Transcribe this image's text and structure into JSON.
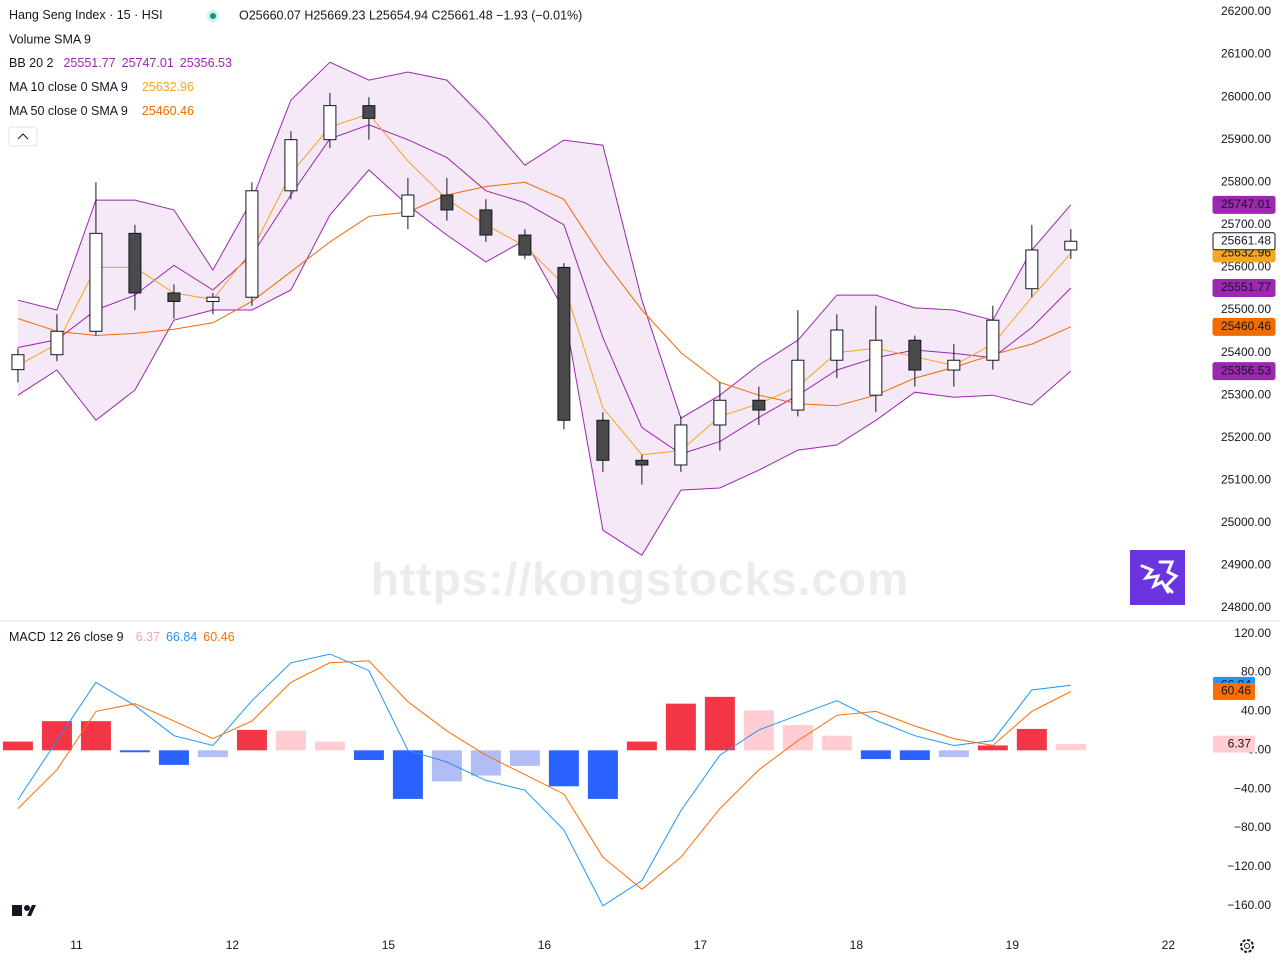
{
  "chart_data": [
    {
      "type": "candlestick",
      "title": "Hang Seng Index · 15 · HSI",
      "ohlc_text": "O25660.07 H25669.23 L25654.94 C25661.48 −1.93 (−0.01%)",
      "volume_text": "Volume SMA 9",
      "watermark": "https://kongstocks.com",
      "x": [
        -0.375,
        -0.125,
        0.125,
        0.375,
        0.625,
        0.875,
        1.125,
        1.375,
        1.625,
        1.875,
        2.125,
        2.375,
        2.625,
        2.875,
        3.125,
        3.375,
        3.625,
        3.875,
        4.125,
        4.375,
        4.625,
        4.875,
        5.125,
        5.375,
        5.625,
        5.875,
        6.125,
        6.375
      ],
      "candles": [
        [
          25360,
          25410,
          25330,
          25395
        ],
        [
          25395,
          25490,
          25380,
          25450
        ],
        [
          25450,
          25800,
          25440,
          25680
        ],
        [
          25680,
          25700,
          25500,
          25540
        ],
        [
          25540,
          25560,
          25480,
          25520
        ],
        [
          25520,
          25540,
          25490,
          25530
        ],
        [
          25530,
          25800,
          25510,
          25780
        ],
        [
          25780,
          25920,
          25760,
          25900
        ],
        [
          25900,
          26010,
          25880,
          25980
        ],
        [
          25980,
          26000,
          25900,
          25950
        ],
        [
          25720,
          25810,
          25690,
          25770
        ],
        [
          25770,
          25810,
          25710,
          25735
        ],
        [
          25735,
          25760,
          25660,
          25676
        ],
        [
          25676,
          25690,
          25620,
          25629
        ],
        [
          25600,
          25610,
          25220,
          25241
        ],
        [
          25241,
          25260,
          25120,
          25147
        ],
        [
          25147,
          25160,
          25090,
          25136
        ],
        [
          25136,
          25250,
          25120,
          25230
        ],
        [
          25230,
          25330,
          25170,
          25288
        ],
        [
          25288,
          25320,
          25230,
          25265
        ],
        [
          25265,
          25500,
          25250,
          25382
        ],
        [
          25382,
          25490,
          25340,
          25453
        ],
        [
          25300,
          25510,
          25260,
          25429
        ],
        [
          25429,
          25440,
          25320,
          25359
        ],
        [
          25359,
          25420,
          25320,
          25382
        ],
        [
          25382,
          25510,
          25360,
          25476
        ],
        [
          25550,
          25700,
          25530,
          25641
        ],
        [
          25641,
          25690,
          25620,
          25661.48
        ]
      ],
      "up_color": "#ffffff",
      "down_color": "#4a4a4a",
      "candle_border": "#131722",
      "series": [
        {
          "name": "BB 20 2",
          "color": "#9c27b0",
          "fill": "rgba(156,39,176,0.10)",
          "basis": [
            25412,
            25430,
            25500,
            25535,
            25605,
            25547,
            25629,
            25770,
            25902,
            25935,
            25900,
            25858,
            25780,
            25752,
            25700,
            25435,
            25224,
            25162,
            25191,
            25248,
            25300,
            25359,
            25388,
            25406,
            25398,
            25388,
            25459,
            25551.77
          ],
          "upper": [
            25523,
            25500,
            25758,
            25758,
            25735,
            25594,
            25758,
            25993,
            26082,
            26040,
            26059,
            26040,
            25946,
            25840,
            25899,
            25887,
            25523,
            25246,
            25300,
            25371,
            25429,
            25535,
            25535,
            25505,
            25500,
            25476,
            25641,
            25747.01
          ],
          "lower": [
            25300,
            25359,
            25241,
            25312,
            25476,
            25500,
            25500,
            25547,
            25723,
            25829,
            25746,
            25676,
            25613,
            25664,
            25500,
            24983,
            24924,
            25077,
            25082,
            25124,
            25171,
            25183,
            25241,
            25307,
            25295,
            25300,
            25277,
            25356.53
          ]
        },
        {
          "name": "MA 10 close 0 SMA 9",
          "color": "#f5a623",
          "values": [
            25370,
            25420,
            25600,
            25600,
            25540,
            25525,
            25640,
            25820,
            25930,
            25960,
            25850,
            25760,
            25700,
            25650,
            25560,
            25270,
            25160,
            25170,
            25250,
            25280,
            25320,
            25400,
            25410,
            25390,
            25370,
            25420,
            25530,
            25632.96
          ]
        },
        {
          "name": "MA 50 close 0 SMA 9",
          "color": "#ef6c00",
          "values": [
            25480,
            25450,
            25440,
            25445,
            25455,
            25470,
            25520,
            25590,
            25660,
            25720,
            25730,
            25770,
            25790,
            25800,
            25760,
            25620,
            25500,
            25400,
            25330,
            25300,
            25280,
            25275,
            25300,
            25340,
            25365,
            25395,
            25420,
            25460.46
          ]
        }
      ],
      "xlim": [
        -0.49,
        7.28
      ],
      "xticks": [
        {
          "value": 0,
          "label": "11"
        },
        {
          "value": 1,
          "label": "12"
        },
        {
          "value": 2,
          "label": "15"
        },
        {
          "value": 3,
          "label": "16"
        },
        {
          "value": 4,
          "label": "17"
        },
        {
          "value": 5,
          "label": "18"
        },
        {
          "value": 6,
          "label": "19"
        },
        {
          "value": 7,
          "label": "22"
        }
      ],
      "ylim": [
        24772,
        26228
      ],
      "yticks": [
        {
          "value": 24800,
          "label": "24800.00"
        },
        {
          "value": 24900,
          "label": "24900.00"
        },
        {
          "value": 25000,
          "label": "25000.00"
        },
        {
          "value": 25100,
          "label": "25100.00"
        },
        {
          "value": 25200,
          "label": "25200.00"
        },
        {
          "value": 25300,
          "label": "25300.00"
        },
        {
          "value": 25400,
          "label": "25400.00"
        },
        {
          "value": 25500,
          "label": "25500.00"
        },
        {
          "value": 25600,
          "label": "25600.00"
        },
        {
          "value": 25700,
          "label": "25700.00"
        },
        {
          "value": 25800,
          "label": "25800.00"
        },
        {
          "value": 25900,
          "label": "25900.00"
        },
        {
          "value": 26000,
          "label": "26000.00"
        },
        {
          "value": 26100,
          "label": "26100.00"
        },
        {
          "value": 26200,
          "label": "26200.00"
        }
      ],
      "grid": false
    },
    {
      "type": "macd",
      "title": "MACD 12 26 close 9",
      "histogram": {
        "values": [
          9,
          30,
          30,
          -2,
          -15,
          -7,
          21,
          20,
          9,
          -10,
          -50,
          -32,
          -26,
          -16,
          -37,
          -50,
          9,
          48,
          55,
          41,
          26,
          15,
          -9,
          -10,
          -7,
          5,
          22,
          6.37
        ],
        "colors": {
          "up": "#f23645",
          "up_fade": "#ffcdd2",
          "down": "#2962ff",
          "down_fade": "#b2bcf5"
        }
      },
      "macd": {
        "color": "#2196f3",
        "values": [
          -51,
          10,
          70,
          46,
          15,
          5,
          51,
          90,
          99,
          82,
          0,
          -12,
          -31,
          -41,
          -82,
          -160,
          -134,
          -62,
          -5,
          21,
          36,
          51,
          31,
          15,
          5,
          10,
          62,
          66.84
        ]
      },
      "signal": {
        "color": "#ff6d00",
        "values": [
          -60,
          -20,
          40,
          48,
          30,
          12,
          30,
          70,
          90,
          92,
          50,
          20,
          -5,
          -25,
          -45,
          -110,
          -143,
          -110,
          -60,
          -20,
          10,
          36,
          40,
          25,
          12,
          5,
          40,
          60.46
        ]
      },
      "ylim": [
        -190,
        132
      ],
      "yticks": [
        {
          "value": 120,
          "label": "120.00"
        },
        {
          "value": 80,
          "label": "80.00"
        },
        {
          "value": 40,
          "label": "40.00"
        },
        {
          "value": 0,
          "label": "0.00"
        },
        {
          "value": -40,
          "label": "−40.00"
        },
        {
          "value": -80,
          "label": "−80.00"
        },
        {
          "value": -120,
          "label": "−120.00"
        },
        {
          "value": -160,
          "label": "−160.00"
        }
      ],
      "grid": false
    }
  ]
}
